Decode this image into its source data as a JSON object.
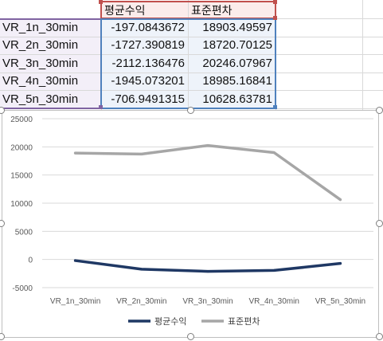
{
  "table": {
    "headers": [
      "평균수익",
      "표준편차"
    ],
    "rows": [
      {
        "label": "VR_1n_30min",
        "mean": "-197.0843672",
        "std": "18903.49597"
      },
      {
        "label": "VR_2n_30min",
        "mean": "-1727.390819",
        "std": "18720.70125"
      },
      {
        "label": "VR_3n_30min",
        "mean": "-2112.136476",
        "std": "20246.07967"
      },
      {
        "label": "VR_4n_30min",
        "mean": "-1945.073201",
        "std": "18985.16841"
      },
      {
        "label": "VR_5n_30min",
        "mean": "-706.9491315",
        "std": "10628.63781"
      }
    ]
  },
  "colors": {
    "mean_series": "#1f3864",
    "std_series": "#a6a6a6",
    "selection_red": "#c0504d",
    "selection_purple": "#8064a2",
    "selection_blue": "#4f81bd"
  },
  "chart_data": {
    "type": "line",
    "categories": [
      "VR_1n_30min",
      "VR_2n_30min",
      "VR_3n_30min",
      "VR_4n_30min",
      "VR_5n_30min"
    ],
    "series": [
      {
        "name": "평균수익",
        "values": [
          -197.0843672,
          -1727.390819,
          -2112.136476,
          -1945.073201,
          -706.9491315
        ],
        "color": "#1f3864"
      },
      {
        "name": "표준편차",
        "values": [
          18903.49597,
          18720.70125,
          20246.07967,
          18985.16841,
          10628.63781
        ],
        "color": "#a6a6a6"
      }
    ],
    "ylim": [
      -5000,
      25000
    ],
    "yticks": [
      "-5000",
      "0",
      "5000",
      "10000",
      "15000",
      "20000",
      "25000"
    ],
    "grid": true,
    "legend": "bottom"
  }
}
